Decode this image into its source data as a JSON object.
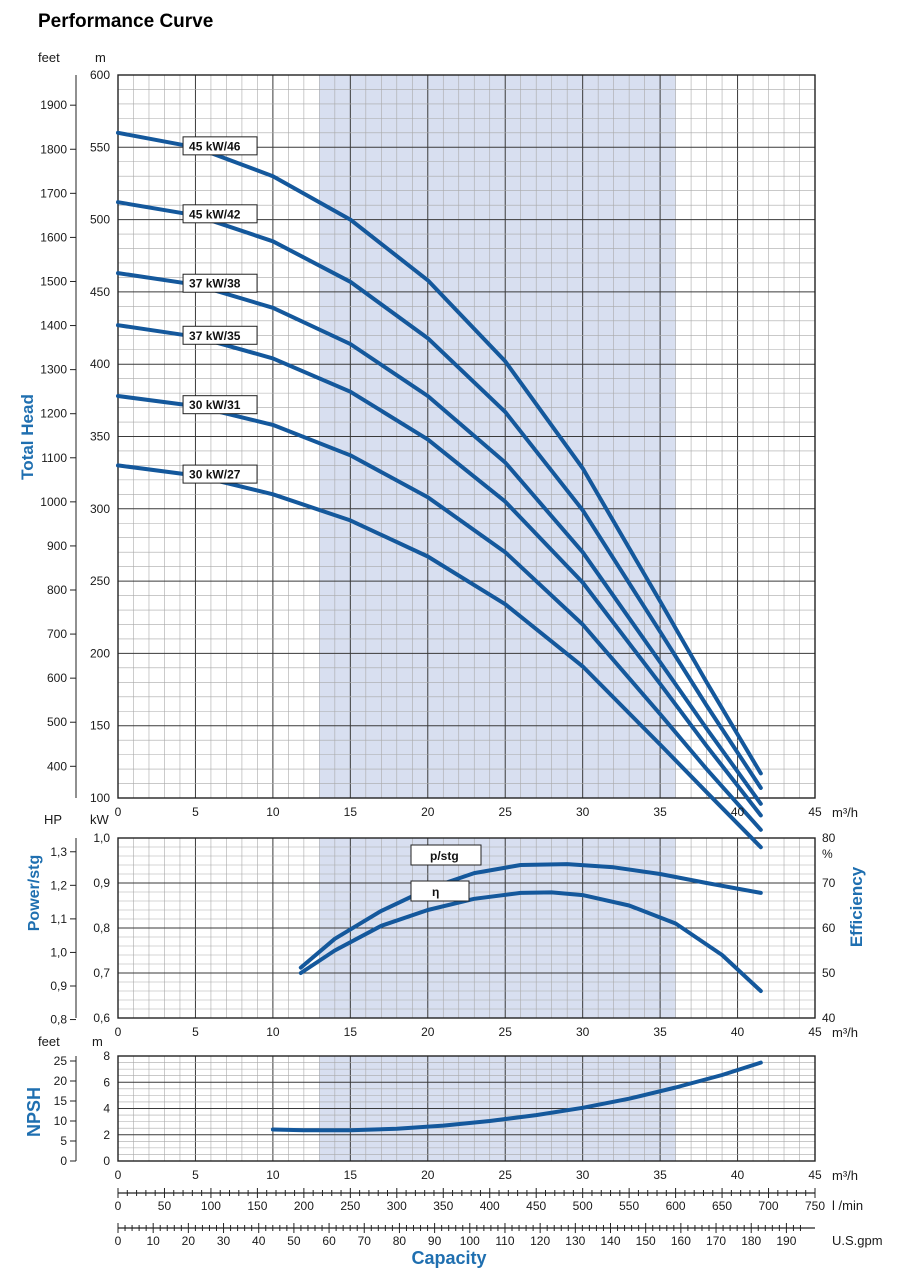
{
  "page_title": "Performance Curve",
  "colors": {
    "curve": "#14589c",
    "shade": "#d8dff0",
    "grid_major": "#3a3a3a",
    "grid_minor": "#a9a9a9",
    "label_blue": "#1f6fb0"
  },
  "shaded_flow_range": [
    13,
    36
  ],
  "chart_data": [
    {
      "type": "line",
      "title": "",
      "ylabel": "Total Head",
      "x_unit": "m³/h",
      "y_unit_left": "m",
      "y_unit_left2": "feet",
      "xlim": [
        0,
        45
      ],
      "ylim": [
        100,
        600
      ],
      "x_ticks": [
        "0",
        "5",
        "10",
        "15",
        "20",
        "25",
        "30",
        "35",
        "40",
        "45"
      ],
      "y_ticks_m": [
        "100",
        "150",
        "200",
        "250",
        "300",
        "350",
        "400",
        "450",
        "500",
        "550",
        "600"
      ],
      "y_ticks_feet": [
        "400",
        "500",
        "600",
        "700",
        "800",
        "900",
        "1000",
        "1100",
        "1200",
        "1300",
        "1400",
        "1500",
        "1600",
        "1700",
        "1800",
        "1900"
      ],
      "series": [
        {
          "name": "45 kW/46",
          "x": [
            0,
            5,
            10,
            15,
            20,
            25,
            30,
            35,
            38,
            41.5
          ],
          "y": [
            560,
            550,
            530,
            500,
            458,
            402,
            328,
            236,
            180,
            117
          ]
        },
        {
          "name": "45 kW/42",
          "x": [
            0,
            5,
            10,
            15,
            20,
            25,
            30,
            35,
            38,
            41.5
          ],
          "y": [
            512,
            503,
            485,
            457,
            418,
            367,
            299,
            215,
            164,
            107
          ]
        },
        {
          "name": "37 kW/38",
          "x": [
            0,
            5,
            10,
            15,
            20,
            25,
            30,
            35,
            38,
            41.5
          ],
          "y": [
            463,
            455,
            439,
            414,
            378,
            332,
            270,
            194,
            148,
            96
          ]
        },
        {
          "name": "37 kW/35",
          "x": [
            0,
            5,
            10,
            15,
            20,
            25,
            30,
            35,
            38,
            41.5
          ],
          "y": [
            427,
            419,
            404,
            381,
            348,
            305,
            249,
            179,
            136,
            88
          ]
        },
        {
          "name": "30 kW/31",
          "x": [
            0,
            5,
            10,
            15,
            20,
            25,
            30,
            35,
            38,
            41.5
          ],
          "y": [
            378,
            371,
            358,
            337,
            308,
            270,
            220,
            158,
            120,
            78
          ]
        },
        {
          "name": "30 kW/27",
          "x": [
            0,
            5,
            10,
            15,
            20,
            25,
            30,
            35,
            38,
            41.5
          ],
          "y": [
            330,
            323,
            310,
            292,
            267,
            234,
            191,
            137,
            104,
            66
          ]
        }
      ]
    },
    {
      "type": "line",
      "ylabel_left": "Power/stg",
      "ylabel_right": "Efficiency",
      "x_unit": "m³/h",
      "y_unit_left": "kW",
      "y_unit_left2": "HP",
      "y_unit_right": "%",
      "xlim": [
        0,
        45
      ],
      "ylim_kw": [
        0.6,
        1.0
      ],
      "ylim_eff": [
        40,
        80
      ],
      "x_ticks": [
        "0",
        "5",
        "10",
        "15",
        "20",
        "25",
        "30",
        "35",
        "40",
        "45"
      ],
      "y_ticks_kw": [
        "0,6",
        "0,7",
        "0,8",
        "0,9",
        "1,0"
      ],
      "y_ticks_hp": [
        "0,8",
        "0,9",
        "1,0",
        "1,1",
        "1,2",
        "1,3"
      ],
      "y_ticks_eff": [
        "40",
        "50",
        "60",
        "70",
        "80"
      ],
      "series": [
        {
          "name": "p/stg",
          "axis": "kW",
          "x": [
            11.8,
            14,
            17,
            20,
            23,
            26,
            29,
            32,
            35,
            38,
            41.5
          ],
          "y": [
            0.712,
            0.776,
            0.838,
            0.887,
            0.922,
            0.94,
            0.942,
            0.935,
            0.92,
            0.9,
            0.878
          ]
        },
        {
          "name": "η",
          "axis": "%",
          "x": [
            11.8,
            14,
            17,
            20,
            23,
            26,
            28,
            30,
            33,
            36,
            39,
            41.5
          ],
          "y": [
            50,
            55,
            60.5,
            64,
            66.5,
            67.8,
            67.9,
            67.3,
            65,
            61,
            54,
            46
          ]
        }
      ]
    },
    {
      "type": "line",
      "ylabel": "NPSH",
      "x_unit": "m³/h",
      "y_unit_left": "m",
      "y_unit_left2": "feet",
      "xlim": [
        0,
        45
      ],
      "ylim": [
        0,
        8
      ],
      "x_ticks": [
        "0",
        "5",
        "10",
        "15",
        "20",
        "25",
        "30",
        "35",
        "40",
        "45"
      ],
      "y_ticks_m": [
        "0",
        "2",
        "4",
        "6",
        "8"
      ],
      "y_ticks_feet": [
        "0",
        "5",
        "10",
        "15",
        "20",
        "25"
      ],
      "series": [
        {
          "name": "NPSH",
          "x": [
            10,
            12,
            15,
            18,
            21,
            24,
            27,
            30,
            33,
            36,
            39,
            41.5
          ],
          "y": [
            2.4,
            2.35,
            2.35,
            2.45,
            2.7,
            3.05,
            3.5,
            4.05,
            4.75,
            5.6,
            6.55,
            7.5
          ]
        }
      ]
    }
  ],
  "capacity_axes": {
    "m3h_unit": "m³/h",
    "lmin_unit": "l /min",
    "lmin_ticks": [
      "0",
      "50",
      "100",
      "150",
      "200",
      "250",
      "300",
      "350",
      "400",
      "450",
      "500",
      "550",
      "600",
      "650",
      "700",
      "750"
    ],
    "gpm_unit": "U.S.gpm",
    "gpm_ticks": [
      "0",
      "10",
      "20",
      "30",
      "40",
      "50",
      "60",
      "70",
      "80",
      "90",
      "100",
      "110",
      "120",
      "130",
      "140",
      "150",
      "160",
      "170",
      "180",
      "190"
    ],
    "label": "Capacity"
  }
}
